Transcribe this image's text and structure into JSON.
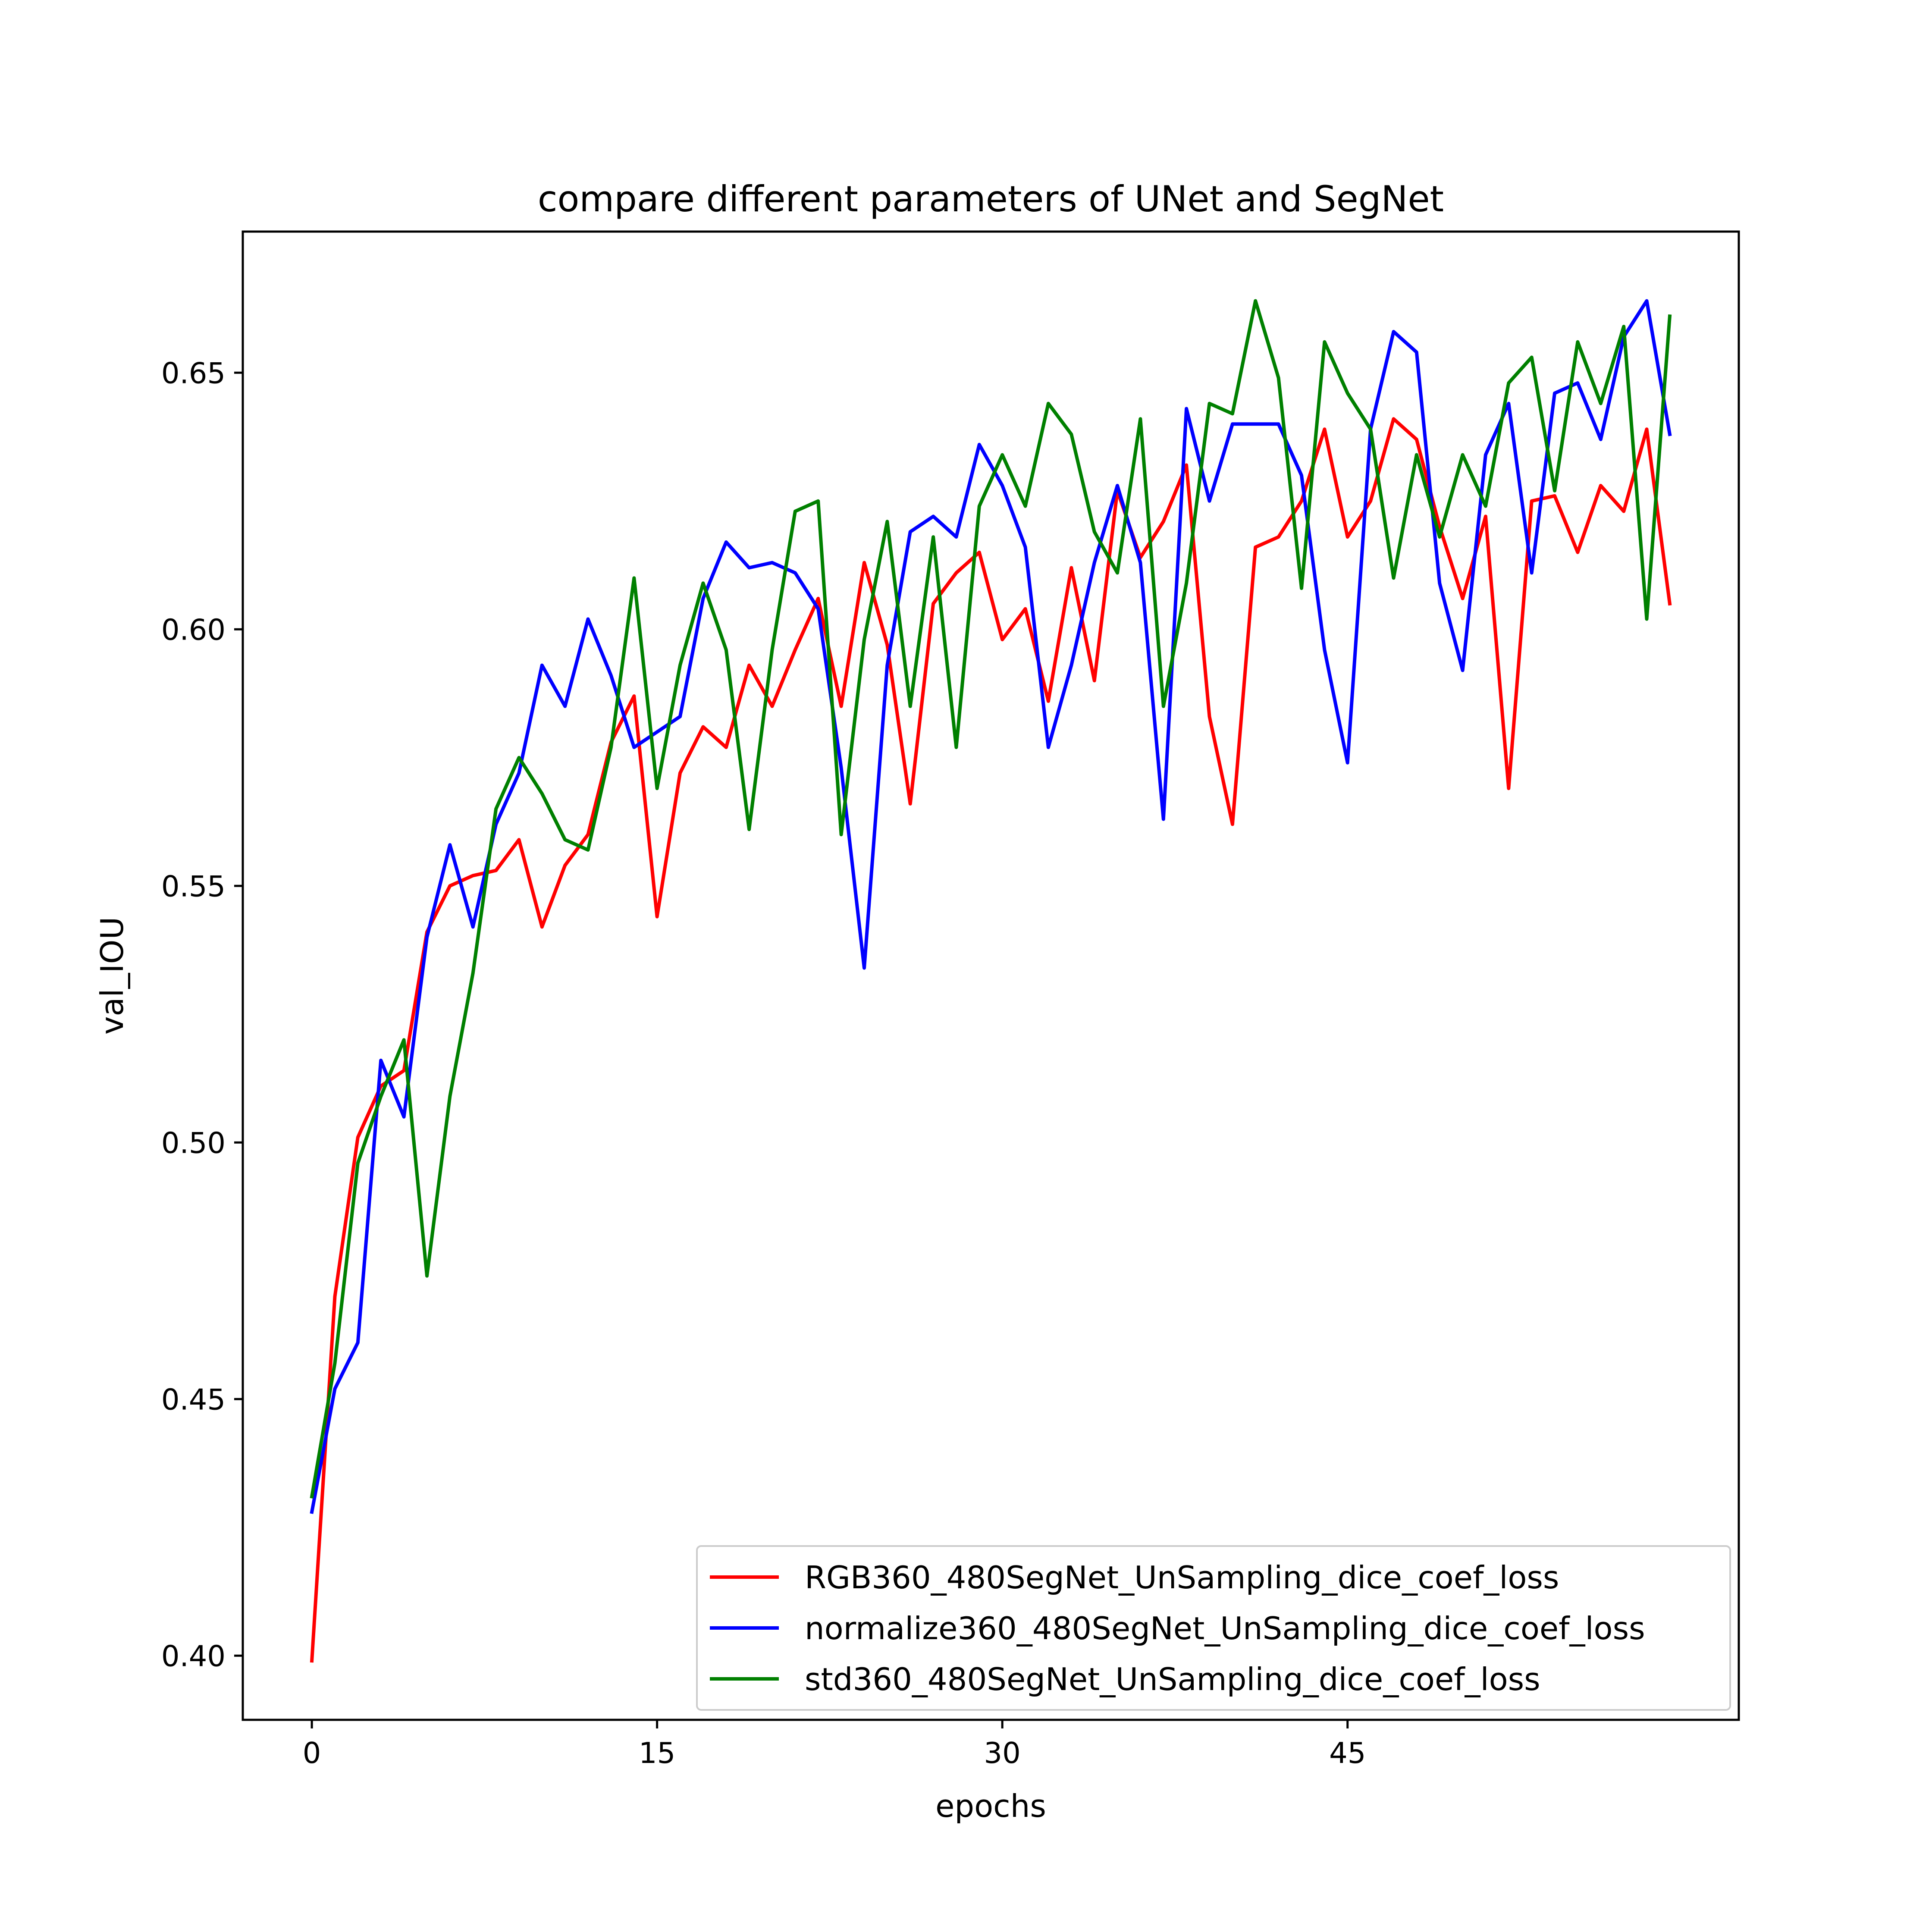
{
  "chart_data": {
    "type": "line",
    "title": "compare different parameters of UNet and SegNet",
    "xlabel": "epochs",
    "ylabel": "val_IOU",
    "xlim": [
      -3,
      62
    ],
    "ylim": [
      0.3875,
      0.6775
    ],
    "xticks": [
      0,
      15,
      30,
      45
    ],
    "xtick_labels": [
      "0",
      "15",
      "30",
      "45"
    ],
    "yticks": [
      0.4,
      0.45,
      0.5,
      0.55,
      0.6,
      0.65
    ],
    "ytick_labels": [
      "0.40",
      "0.45",
      "0.50",
      "0.55",
      "0.60",
      "0.65"
    ],
    "grid": false,
    "legend_position": "lower-right",
    "x": [
      0,
      1,
      2,
      3,
      4,
      5,
      6,
      7,
      8,
      9,
      10,
      11,
      12,
      13,
      14,
      15,
      16,
      17,
      18,
      19,
      20,
      21,
      22,
      23,
      24,
      25,
      26,
      27,
      28,
      29,
      30,
      31,
      32,
      33,
      34,
      35,
      36,
      37,
      38,
      39,
      40,
      41,
      42,
      43,
      44,
      45,
      46,
      47,
      48,
      49,
      50,
      51,
      52,
      53,
      54,
      55,
      56,
      57,
      58,
      59
    ],
    "series": [
      {
        "name": "RGB360_480SegNet_UnSampling_dice_coef_loss",
        "color": "#ff0000",
        "values": [
          0.399,
          0.47,
          0.501,
          0.511,
          0.514,
          0.541,
          0.55,
          0.552,
          0.553,
          0.559,
          0.542,
          0.554,
          0.56,
          0.578,
          0.587,
          0.544,
          0.572,
          0.581,
          0.577,
          0.593,
          0.585,
          0.596,
          0.606,
          0.585,
          0.613,
          0.597,
          0.566,
          0.605,
          0.611,
          0.615,
          0.598,
          0.604,
          0.586,
          0.612,
          0.59,
          0.627,
          0.614,
          0.621,
          0.632,
          0.583,
          0.562,
          0.616,
          0.618,
          0.625,
          0.639,
          0.618,
          0.625,
          0.641,
          0.637,
          0.62,
          0.606,
          0.622,
          0.569,
          0.625,
          0.626,
          0.615,
          0.628,
          0.623,
          0.639,
          0.605
        ]
      },
      {
        "name": "normalize360_480SegNet_UnSampling_dice_coef_loss",
        "color": "#0000ff",
        "values": [
          0.428,
          0.452,
          0.461,
          0.516,
          0.505,
          0.54,
          0.558,
          0.542,
          0.562,
          0.572,
          0.593,
          0.585,
          0.602,
          0.591,
          0.577,
          0.58,
          0.583,
          0.606,
          0.617,
          0.612,
          0.613,
          0.611,
          0.604,
          0.573,
          0.534,
          0.593,
          0.619,
          0.622,
          0.618,
          0.636,
          0.628,
          0.616,
          0.577,
          0.593,
          0.613,
          0.628,
          0.613,
          0.563,
          0.643,
          0.625,
          0.64,
          0.64,
          0.64,
          0.63,
          0.596,
          0.574,
          0.639,
          0.658,
          0.654,
          0.609,
          0.592,
          0.634,
          0.644,
          0.611,
          0.646,
          0.648,
          0.637,
          0.657,
          0.664,
          0.638
        ]
      },
      {
        "name": "std360_480SegNet_UnSampling_dice_coef_loss",
        "color": "#008000",
        "values": [
          0.431,
          0.457,
          0.496,
          0.509,
          0.52,
          0.474,
          0.509,
          0.533,
          0.565,
          0.575,
          0.568,
          0.559,
          0.557,
          0.577,
          0.61,
          0.569,
          0.593,
          0.609,
          0.596,
          0.561,
          0.596,
          0.623,
          0.625,
          0.56,
          0.598,
          0.621,
          0.585,
          0.618,
          0.577,
          0.624,
          0.634,
          0.624,
          0.644,
          0.638,
          0.619,
          0.611,
          0.641,
          0.585,
          0.609,
          0.644,
          0.642,
          0.664,
          0.649,
          0.608,
          0.656,
          0.646,
          0.639,
          0.61,
          0.634,
          0.618,
          0.634,
          0.624,
          0.648,
          0.653,
          0.627,
          0.656,
          0.644,
          0.659,
          0.602,
          0.661
        ]
      }
    ]
  }
}
